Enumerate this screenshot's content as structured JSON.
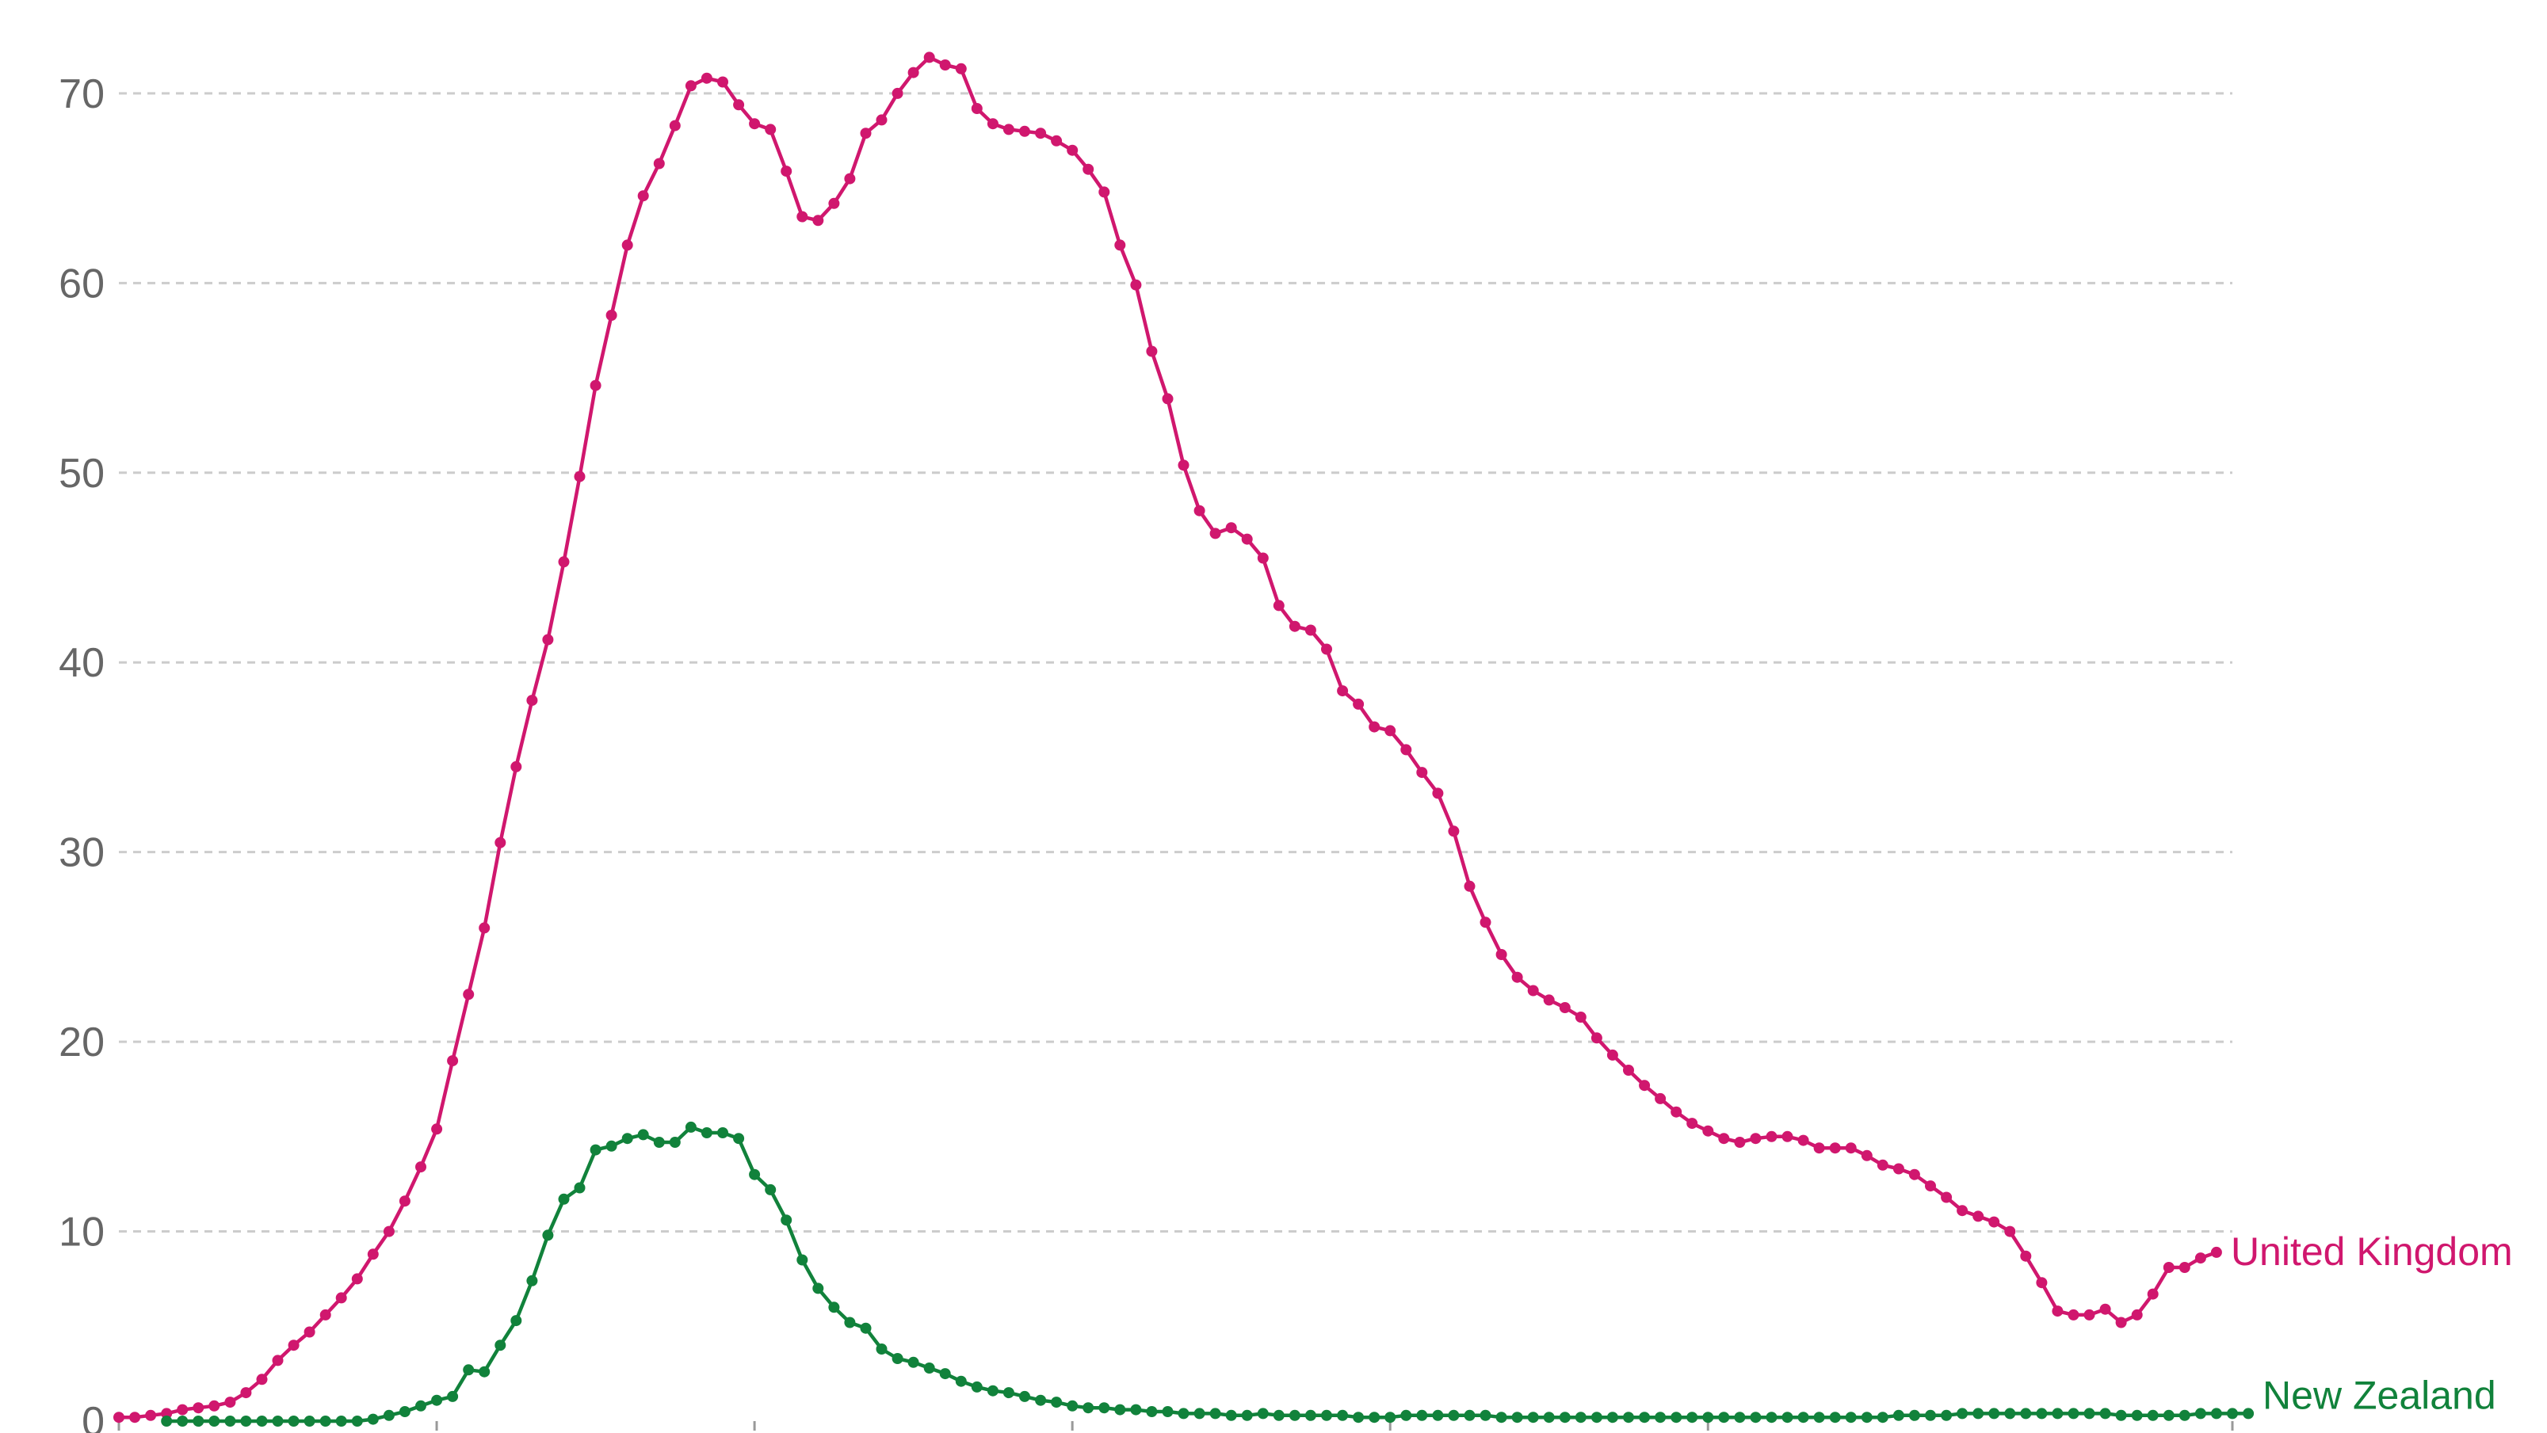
{
  "chart_data": {
    "type": "line",
    "title": "",
    "xlabel": "",
    "ylabel": "",
    "ylim": [
      0,
      72
    ],
    "yticks": [
      0,
      10,
      20,
      30,
      40,
      50,
      60,
      70
    ],
    "grid": true,
    "x_index_range": [
      0,
      133
    ],
    "x_tick_indices": [
      0,
      20,
      40,
      60,
      80,
      100,
      133
    ],
    "series": [
      {
        "name": "United Kingdom",
        "color": "#d0176e",
        "values": [
          0.2,
          0.2,
          0.3,
          0.4,
          0.6,
          0.7,
          0.8,
          1.0,
          1.5,
          2.2,
          3.2,
          4.0,
          4.7,
          5.6,
          6.5,
          7.5,
          8.8,
          10.0,
          11.6,
          13.4,
          15.4,
          19.0,
          22.5,
          26.0,
          30.5,
          34.5,
          38.0,
          41.2,
          45.3,
          49.8,
          54.6,
          58.3,
          62.0,
          64.6,
          66.3,
          68.3,
          70.4,
          70.8,
          70.6,
          69.4,
          68.4,
          68.1,
          65.9,
          63.5,
          63.3,
          64.2,
          65.5,
          67.9,
          68.6,
          70.0,
          71.1,
          71.9,
          71.5,
          71.3,
          69.2,
          68.4,
          68.1,
          68.0,
          67.9,
          67.5,
          67.0,
          66.0,
          64.8,
          62.0,
          59.9,
          56.4,
          53.9,
          50.4,
          48.0,
          46.8,
          47.1,
          46.5,
          45.5,
          43.0,
          41.9,
          41.7,
          40.7,
          38.5,
          37.8,
          36.6,
          36.4,
          35.4,
          34.2,
          33.1,
          31.1,
          28.2,
          26.3,
          24.6,
          23.4,
          22.7,
          22.2,
          21.8,
          21.3,
          20.2,
          19.3,
          18.5,
          17.7,
          17.0,
          16.3,
          15.7,
          15.3,
          14.9,
          14.7,
          14.9,
          15.0,
          15.0,
          14.8,
          14.4,
          14.4,
          14.4,
          14.0,
          13.5,
          13.3,
          13.0,
          12.4,
          11.8,
          11.1,
          10.8,
          10.5,
          10.0,
          8.7,
          7.3,
          5.8,
          5.6,
          5.6,
          5.9,
          5.2,
          5.6,
          6.7,
          8.1,
          8.1,
          8.6,
          8.9
        ]
      },
      {
        "name": "New Zealand",
        "color": "#11823b",
        "start_index": 3,
        "values": [
          0.0,
          0.0,
          0.0,
          0.0,
          0.0,
          0.0,
          0.0,
          0.0,
          0.0,
          0.0,
          0.0,
          0.0,
          0.0,
          0.1,
          0.3,
          0.5,
          0.8,
          1.1,
          1.3,
          2.7,
          2.6,
          4.0,
          5.3,
          7.4,
          9.8,
          11.7,
          12.3,
          14.3,
          14.5,
          14.9,
          15.1,
          14.7,
          14.7,
          15.5,
          15.2,
          15.2,
          14.9,
          13.0,
          12.2,
          10.6,
          8.5,
          7.0,
          6.0,
          5.2,
          4.9,
          3.8,
          3.3,
          3.1,
          2.8,
          2.5,
          2.1,
          1.8,
          1.6,
          1.5,
          1.3,
          1.1,
          1.0,
          0.8,
          0.7,
          0.7,
          0.6,
          0.6,
          0.5,
          0.5,
          0.4,
          0.4,
          0.4,
          0.3,
          0.3,
          0.4,
          0.3,
          0.3,
          0.3,
          0.3,
          0.3,
          0.2,
          0.2,
          0.2,
          0.3,
          0.3,
          0.3,
          0.3,
          0.3,
          0.3,
          0.2,
          0.2,
          0.2,
          0.2,
          0.2,
          0.2,
          0.2,
          0.2,
          0.2,
          0.2,
          0.2,
          0.2,
          0.2,
          0.2,
          0.2,
          0.2,
          0.2,
          0.2,
          0.2,
          0.2,
          0.2,
          0.2,
          0.2,
          0.2,
          0.2,
          0.3,
          0.3,
          0.3,
          0.3,
          0.4,
          0.4,
          0.4,
          0.4,
          0.4,
          0.4,
          0.4,
          0.4,
          0.4,
          0.4,
          0.3,
          0.3,
          0.3,
          0.3,
          0.3,
          0.4,
          0.4,
          0.4,
          0.4
        ]
      }
    ]
  }
}
